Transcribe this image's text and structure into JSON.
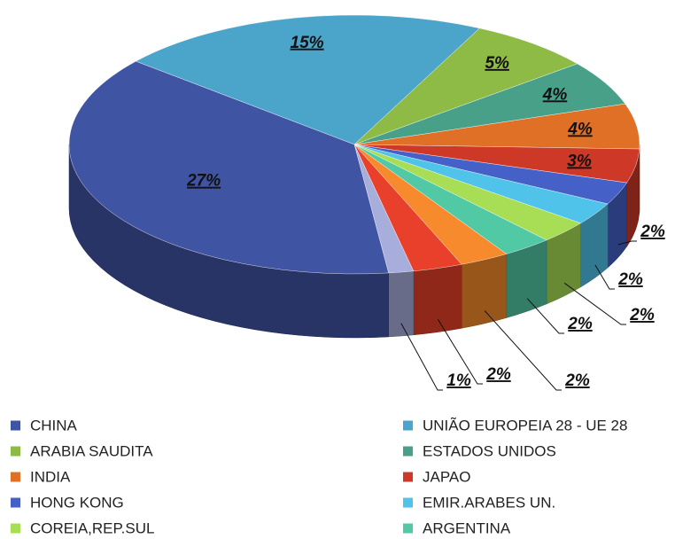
{
  "chart_data": {
    "type": "pie3d",
    "categories": [
      "CHINA",
      "UNIÃO EUROPEIA 28 - UE 28",
      "ARABIA SAUDITA",
      "ESTADOS UNIDOS",
      "INDIA",
      "JAPAO",
      "HONG KONG",
      "EMIR.ARABES UN.",
      "COREIA,REP.SUL",
      "ARGENTINA",
      null,
      null,
      null
    ],
    "values": [
      27,
      15,
      5,
      4,
      4,
      3,
      2,
      2,
      2,
      2,
      2,
      2,
      1
    ],
    "value_labels": [
      "27%",
      "15%",
      "5%",
      "4%",
      "4%",
      "3%",
      "2%",
      "2%",
      "2%",
      "2%",
      "2%",
      "2%",
      "1%"
    ],
    "colors": [
      "#3f54a3",
      "#4ba4c9",
      "#8dbb45",
      "#48a088",
      "#e07026",
      "#cd3827",
      "#4561c8",
      "#4fc3ea",
      "#a7de56",
      "#52c9a5",
      "#f68a2c",
      "#e8402a",
      "#a8aedb"
    ],
    "legend": "bottom"
  }
}
